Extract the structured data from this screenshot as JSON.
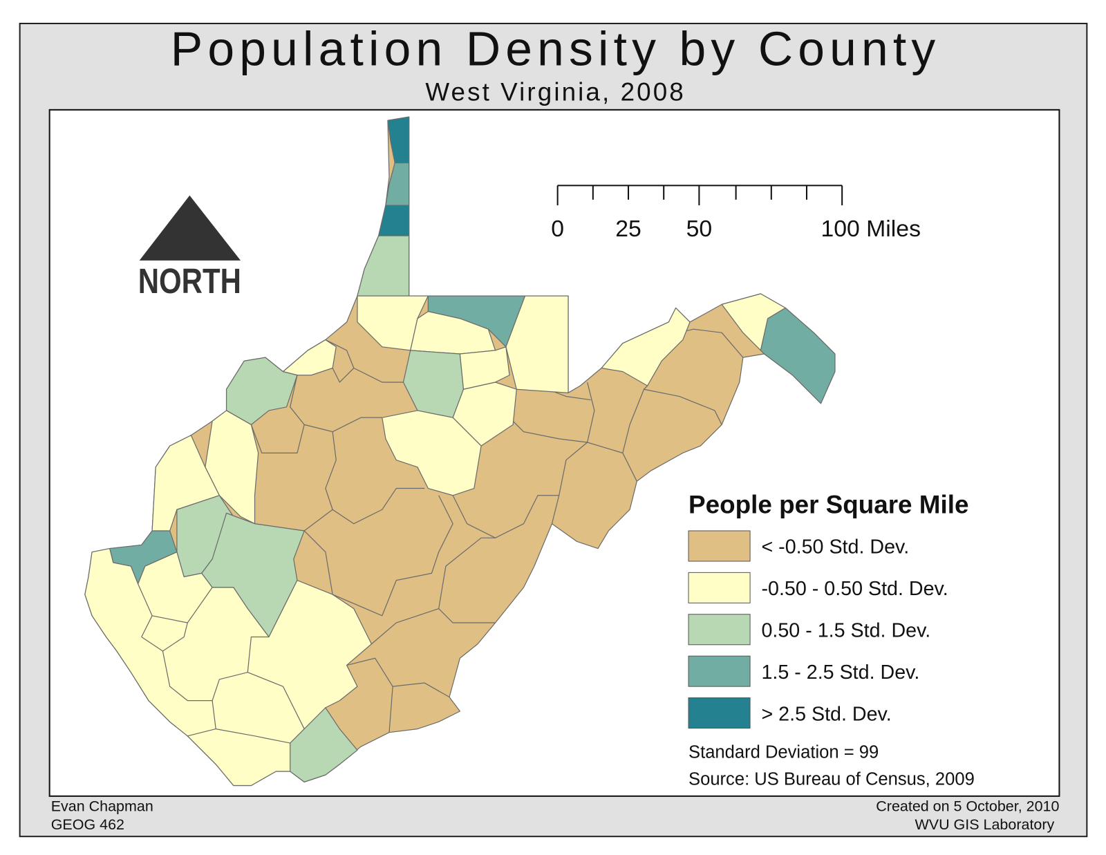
{
  "title": "Population Density by County",
  "subtitle": "West Virginia, 2008",
  "north_arrow": {
    "label": "NORTH"
  },
  "scale_bar": {
    "labels": [
      "0",
      "25",
      "50",
      "100 Miles"
    ]
  },
  "legend": {
    "title": "People per Square Mile",
    "items": [
      {
        "label": "< -0.50 Std. Dev.",
        "color": "#dfbf84"
      },
      {
        "label": "-0.50 - 0.50 Std. Dev.",
        "color": "#fefec6"
      },
      {
        "label": "0.50 - 1.5 Std. Dev.",
        "color": "#b7d8b3"
      },
      {
        "label": "1.5 - 2.5 Std. Dev.",
        "color": "#72ada3"
      },
      {
        "label": "> 2.5 Std. Dev.",
        "color": "#24818f"
      }
    ]
  },
  "notes": [
    "Standard Deviation = 99",
    "Source: US Bureau of Census, 2009"
  ],
  "footer": {
    "author": "Evan Chapman",
    "course": "GEOG 462",
    "created": "Created on 5 October, 2010",
    "lab": "WVU GIS Laboratory"
  }
}
